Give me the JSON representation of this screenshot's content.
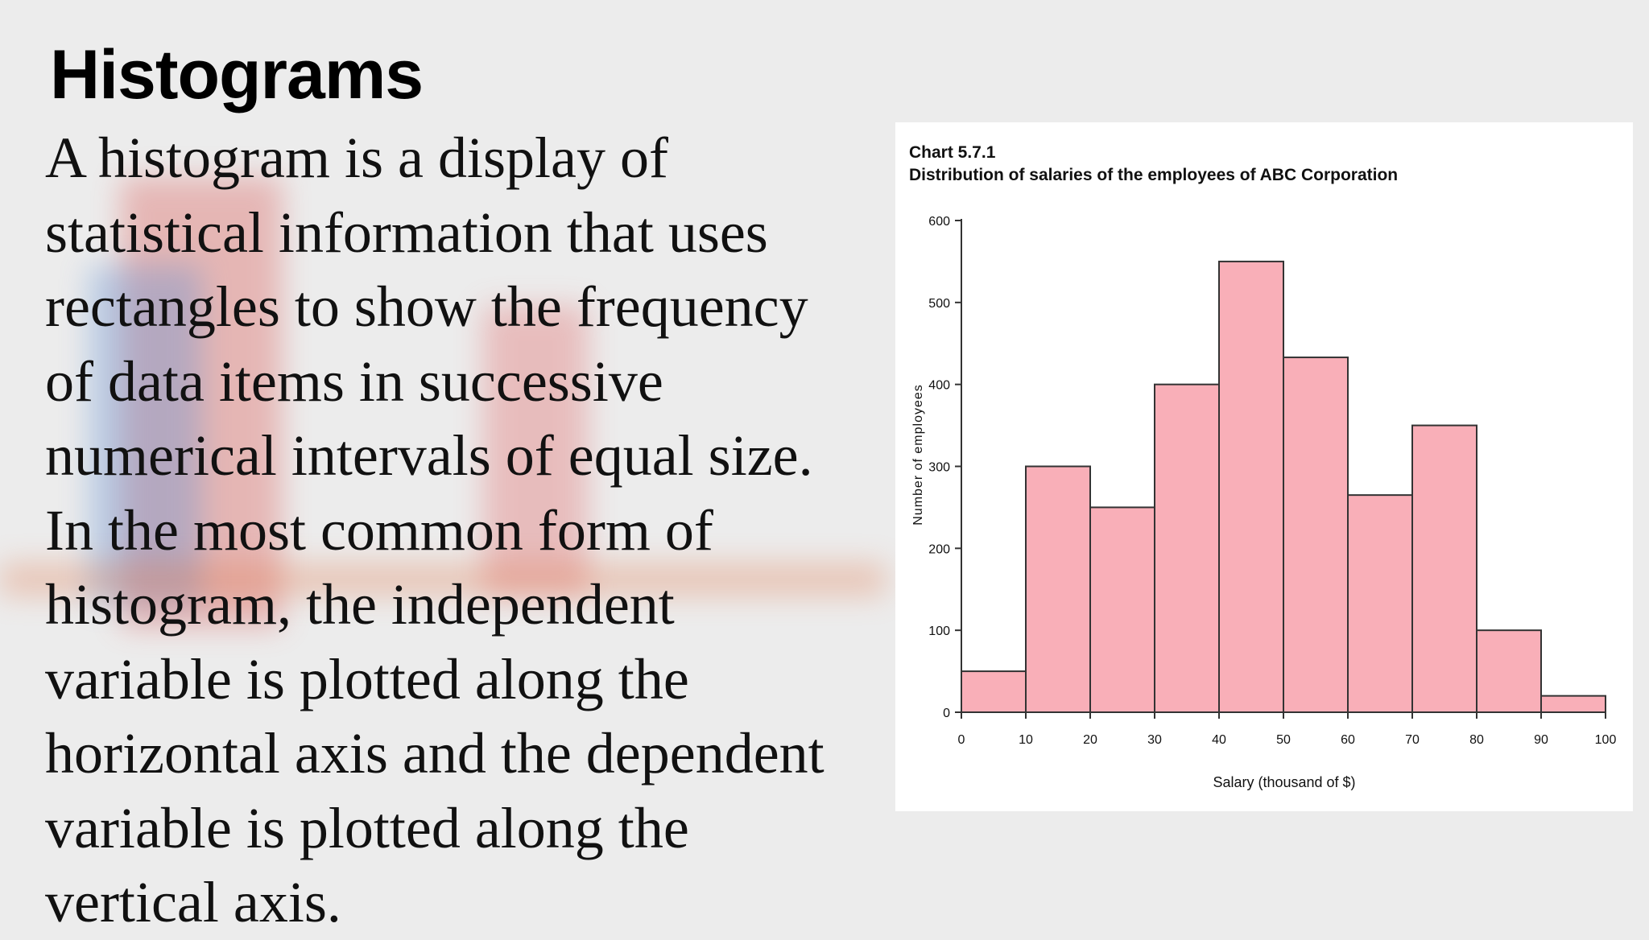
{
  "slide": {
    "title": "Histograms",
    "body_lines": [
      "A histogram is a display of",
      "statistical information that uses",
      "rectangles to show the frequency",
      "of data items in successive",
      "numerical intervals of equal size.",
      "In the most common form of",
      "histogram, the independent",
      "variable is plotted along the",
      "horizontal axis and the dependent",
      "variable is plotted along the",
      "vertical axis."
    ]
  },
  "colors": {
    "bar_fill": "#f9afb8",
    "bar_stroke": "#333333",
    "axis": "#333333"
  },
  "chart_data": {
    "type": "bar",
    "chart_number": "Chart 5.7.1",
    "title": "Distribution of salaries of the employees of ABC Corporation",
    "xlabel": "Salary (thousand of $)",
    "ylabel": "Number of employees",
    "bin_edges": [
      0,
      10,
      20,
      30,
      40,
      50,
      60,
      70,
      80,
      90,
      100
    ],
    "values": [
      50,
      300,
      250,
      400,
      550,
      433,
      265,
      350,
      100,
      20
    ],
    "xlim": [
      0,
      100
    ],
    "ylim": [
      0,
      600
    ],
    "y_ticks": [
      0,
      100,
      200,
      300,
      400,
      500,
      600
    ],
    "x_ticks": [
      0,
      10,
      20,
      30,
      40,
      50,
      60,
      70,
      80,
      90,
      100
    ],
    "grid": false,
    "legend": "none"
  }
}
